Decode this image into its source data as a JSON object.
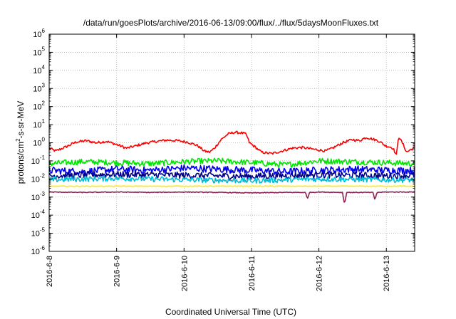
{
  "chart_data": {
    "type": "line",
    "title": "/data/run/goesPlots/archive/2016-06-13/09:00/flux/../flux/5daysMoonFluxes.txt",
    "xlabel": "Coordinated Universal Time (UTC)",
    "ylabel_prefix": "protons/cm",
    "ylabel_sup": "2",
    "ylabel_suffix": "-s-sr-MeV",
    "x_range_days": [
      0,
      5.42
    ],
    "x_ticks": [
      {
        "day": 0,
        "label": "2016-6-8"
      },
      {
        "day": 1,
        "label": "2016-6-9"
      },
      {
        "day": 2,
        "label": "2016-6-10"
      },
      {
        "day": 3,
        "label": "2016-6-11"
      },
      {
        "day": 4,
        "label": "2016-6-12"
      },
      {
        "day": 5,
        "label": "2016-6-13"
      }
    ],
    "y_scale": "log",
    "ylim": [
      1e-06,
      1000000.0
    ],
    "y_ticks": [
      {
        "exp": -6,
        "base": "10",
        "sup": "-6"
      },
      {
        "exp": -5,
        "base": "10",
        "sup": "-5"
      },
      {
        "exp": -4,
        "base": "10",
        "sup": "-4"
      },
      {
        "exp": -3,
        "base": "10",
        "sup": "-3"
      },
      {
        "exp": -2,
        "base": "10",
        "sup": "-2"
      },
      {
        "exp": -1,
        "base": "10",
        "sup": "-1"
      },
      {
        "exp": 0,
        "base": "10",
        "sup": "0"
      },
      {
        "exp": 1,
        "base": "10",
        "sup": "1"
      },
      {
        "exp": 2,
        "base": "10",
        "sup": "2"
      },
      {
        "exp": 3,
        "base": "10",
        "sup": "3"
      },
      {
        "exp": 4,
        "base": "10",
        "sup": "4"
      },
      {
        "exp": 5,
        "base": "10",
        "sup": "5"
      },
      {
        "exp": 6,
        "base": "10",
        "sup": "6"
      }
    ],
    "grid": true,
    "series": [
      {
        "color": "#ff0000",
        "key_points": [
          [
            0,
            0.5
          ],
          [
            0.1,
            0.35
          ],
          [
            0.25,
            0.6
          ],
          [
            0.4,
            1.1
          ],
          [
            0.55,
            1.3
          ],
          [
            0.7,
            1.0
          ],
          [
            0.85,
            1.2
          ],
          [
            1.0,
            0.8
          ],
          [
            1.15,
            0.5
          ],
          [
            1.3,
            0.7
          ],
          [
            1.45,
            1.0
          ],
          [
            1.6,
            1.2
          ],
          [
            1.75,
            1.4
          ],
          [
            1.9,
            1.3
          ],
          [
            2.05,
            1.1
          ],
          [
            2.2,
            0.7
          ],
          [
            2.3,
            0.35
          ],
          [
            2.38,
            0.3
          ],
          [
            2.45,
            0.5
          ],
          [
            2.55,
            1.5
          ],
          [
            2.65,
            3.0
          ],
          [
            2.75,
            3.8
          ],
          [
            2.85,
            3.5
          ],
          [
            2.92,
            3.0
          ],
          [
            2.97,
            1.0
          ],
          [
            3.05,
            0.6
          ],
          [
            3.15,
            0.3
          ],
          [
            3.3,
            0.25
          ],
          [
            3.45,
            0.35
          ],
          [
            3.6,
            0.5
          ],
          [
            3.75,
            0.55
          ],
          [
            3.9,
            0.45
          ],
          [
            4.0,
            0.4
          ],
          [
            4.1,
            0.35
          ],
          [
            4.2,
            0.5
          ],
          [
            4.35,
            1.0
          ],
          [
            4.5,
            1.5
          ],
          [
            4.6,
            1.3
          ],
          [
            4.7,
            2.0
          ],
          [
            4.8,
            1.6
          ],
          [
            4.9,
            1.2
          ],
          [
            4.98,
            0.7
          ],
          [
            5.05,
            0.6
          ],
          [
            5.1,
            0.5
          ],
          [
            5.15,
            0.2
          ],
          [
            5.18,
            2.3
          ],
          [
            5.25,
            0.8
          ],
          [
            5.3,
            0.3
          ],
          [
            5.35,
            0.4
          ],
          [
            5.42,
            0.55
          ]
        ]
      },
      {
        "color": "#00e600",
        "key_points": [
          [
            0,
            0.07
          ],
          [
            0.5,
            0.09
          ],
          [
            1.0,
            0.08
          ],
          [
            1.5,
            0.07
          ],
          [
            2.0,
            0.09
          ],
          [
            2.5,
            0.1
          ],
          [
            3.0,
            0.08
          ],
          [
            3.5,
            0.06
          ],
          [
            4.0,
            0.1
          ],
          [
            4.5,
            0.09
          ],
          [
            5.0,
            0.08
          ],
          [
            5.42,
            0.07
          ]
        ]
      },
      {
        "color": "#0000ee",
        "key_points": [
          [
            0,
            0.03
          ],
          [
            0.5,
            0.025
          ],
          [
            1.0,
            0.035
          ],
          [
            1.5,
            0.03
          ],
          [
            2.0,
            0.04
          ],
          [
            2.5,
            0.035
          ],
          [
            3.0,
            0.03
          ],
          [
            3.5,
            0.025
          ],
          [
            4.0,
            0.03
          ],
          [
            4.5,
            0.035
          ],
          [
            5.0,
            0.03
          ],
          [
            5.42,
            0.03
          ]
        ]
      },
      {
        "color": "#00008b",
        "key_points": [
          [
            0,
            0.015
          ],
          [
            1.0,
            0.018
          ],
          [
            2.0,
            0.016
          ],
          [
            3.0,
            0.014
          ],
          [
            4.0,
            0.017
          ],
          [
            5.0,
            0.015
          ],
          [
            5.42,
            0.016
          ]
        ]
      },
      {
        "color": "#00bcd4",
        "key_points": [
          [
            0,
            0.009
          ],
          [
            1.0,
            0.011
          ],
          [
            2.0,
            0.009
          ],
          [
            3.0,
            0.008
          ],
          [
            4.0,
            0.01
          ],
          [
            5.0,
            0.009
          ],
          [
            5.42,
            0.009
          ]
        ]
      },
      {
        "color": "#ffeb00",
        "key_points": [
          [
            0,
            0.004
          ],
          [
            1.0,
            0.004
          ],
          [
            2.0,
            0.004
          ],
          [
            3.0,
            0.004
          ],
          [
            4.0,
            0.004
          ],
          [
            5.0,
            0.004
          ],
          [
            5.42,
            0.004
          ]
        ]
      },
      {
        "color": "#8b2252",
        "key_points": [
          [
            0,
            0.0019
          ],
          [
            0.5,
            0.0018
          ],
          [
            1.0,
            0.0019
          ],
          [
            1.5,
            0.0018
          ],
          [
            2.0,
            0.0019
          ],
          [
            2.5,
            0.0018
          ],
          [
            3.0,
            0.0017
          ],
          [
            3.5,
            0.0018
          ],
          [
            3.8,
            0.0018
          ],
          [
            3.83,
            0.0008
          ],
          [
            3.86,
            0.0018
          ],
          [
            4.0,
            0.0019
          ],
          [
            4.35,
            0.0018
          ],
          [
            4.38,
            0.0004
          ],
          [
            4.41,
            0.0018
          ],
          [
            4.8,
            0.0018
          ],
          [
            4.83,
            0.0007
          ],
          [
            4.86,
            0.0018
          ],
          [
            5.0,
            0.0019
          ],
          [
            5.42,
            0.0019
          ]
        ]
      }
    ]
  }
}
